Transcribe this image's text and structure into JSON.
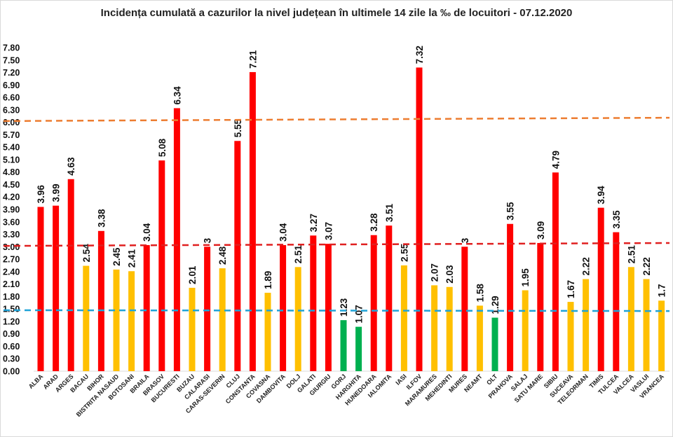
{
  "chart_data": {
    "type": "bar",
    "title": "Incidența cumulată a cazurilor la nivel județean în ultimele 14 zile la ‰ de locuitori - 07.12.2020",
    "xlabel": "",
    "ylabel": "",
    "ylim": [
      0,
      7.8
    ],
    "ytick_step": 0.3,
    "grid": false,
    "categories": [
      "ALBA",
      "ARAD",
      "ARGES",
      "BACAU",
      "BIHOR",
      "BISTRITA NASAUD",
      "BOTOSANI",
      "BRAILA",
      "BRASOV",
      "BUCURESTI",
      "BUZAU",
      "CALARASI",
      "CARAS-SEVERIN",
      "CLUJ",
      "CONSTANTA",
      "COVASNA",
      "DAMBOVITA",
      "DOLJ",
      "GALATI",
      "GIURGIU",
      "GORJ",
      "HARGHITA",
      "HUNEDOARA",
      "IALOMITA",
      "IASI",
      "ILFOV",
      "MARAMURES",
      "MEHEDINTI",
      "MURES",
      "NEAMT",
      "OLT",
      "PRAHOVA",
      "SALAJ",
      "SATU MARE",
      "SIBIU",
      "SUCEAVA",
      "TELEORMAN",
      "TIMIS",
      "TULCEA",
      "VALCEA",
      "VASLUI",
      "VRANCEA"
    ],
    "values": [
      3.96,
      3.99,
      4.63,
      2.54,
      3.38,
      2.45,
      2.41,
      3.04,
      5.08,
      6.34,
      2.01,
      3,
      2.48,
      5.55,
      7.21,
      1.89,
      3.04,
      2.51,
      3.27,
      3.07,
      1.23,
      1.07,
      3.28,
      3.51,
      2.55,
      7.32,
      2.07,
      2.03,
      3,
      1.58,
      1.29,
      3.55,
      1.95,
      3.09,
      4.79,
      1.67,
      2.22,
      3.94,
      3.35,
      2.51,
      2.22,
      1.7
    ],
    "data_labels": [
      "3.96",
      "3.99",
      "4.63",
      "2.54",
      "3.38",
      "2.45",
      "2.41",
      "3.04",
      "5.08",
      "6.34",
      "2.01",
      "3",
      "2.48",
      "5.55",
      "7.21",
      "1.89",
      "3.04",
      "2.51",
      "3.27",
      "3.07",
      "1.23",
      "1.07",
      "3.28",
      "3.51",
      "2.55",
      "7.32",
      "2.07",
      "2.03",
      "3",
      "1.58",
      "1.29",
      "3.55",
      "1.95",
      "3.09",
      "4.79",
      "1.67",
      "2.22",
      "3.94",
      "3.35",
      "2.51",
      "2.22",
      "1.7"
    ],
    "color_thresholds": {
      "red_min": 3.0,
      "yellow_min": 1.5
    },
    "colors": {
      "red": "#ff0000",
      "yellow": "#ffc000",
      "green": "#00b050",
      "axis": "#d9d9d9"
    },
    "reference_lines": [
      {
        "color": "#ed7d31",
        "style": "dashed",
        "start": 6.03,
        "end": 6.11
      },
      {
        "color": "#e02020",
        "style": "dashed",
        "start": 3.02,
        "end": 3.09
      },
      {
        "color": "#1fa3d8",
        "style": "dashed",
        "start": 1.47,
        "end": 1.45
      }
    ]
  }
}
